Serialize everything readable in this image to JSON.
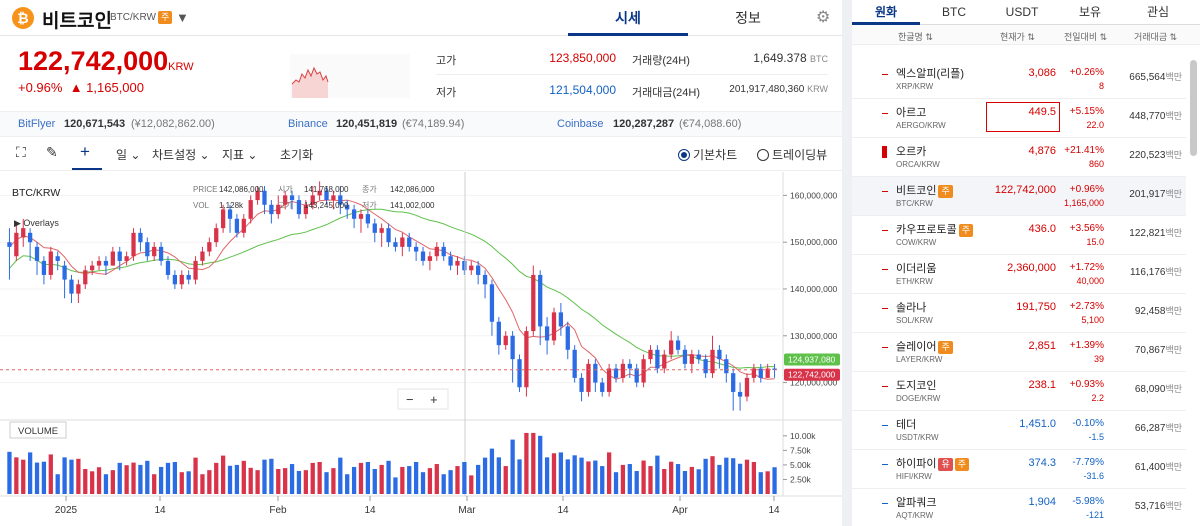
{
  "header": {
    "coin_icon": "₿",
    "coin_name": "비트코인",
    "pair": "BTC/KRW",
    "pair_badge": "주",
    "tab_market": "시세",
    "tab_info": "정보"
  },
  "ticker": {
    "price": "122,742,000",
    "unit": "KRW",
    "change_pct": "+0.96%",
    "change_abs": "▲ 1,165,000",
    "high_label": "고가",
    "high": "123,850,000",
    "low_label": "저가",
    "low": "121,504,000",
    "vol_label": "거래량(24H)",
    "vol": "1,649.378",
    "vol_unit": "BTC",
    "amt_label": "거래대금(24H)",
    "amt": "201,917,480,360",
    "amt_unit": "KRW"
  },
  "exchanges": [
    {
      "name": "BitFlyer",
      "price": "120,671,543",
      "diff": "(¥12,082,862.00)"
    },
    {
      "name": "Binance",
      "price": "120,451,819",
      "diff": "(€74,189.94)"
    },
    {
      "name": "Coinbase",
      "price": "120,287,287",
      "diff": "(€74,088.60)"
    }
  ],
  "toolbar": {
    "period": "일",
    "chart_settings": "차트설정",
    "indicator": "지표",
    "reset": "초기화",
    "basic_chart": "기본차트",
    "tradingview": "트레이딩뷰"
  },
  "chart": {
    "symbol": "BTC/KRW",
    "overlays": "▶ Overlays",
    "volume_label": "VOLUME",
    "info_price_label": "PRICE",
    "info_price": "142,086,000",
    "info_open_label": "시가",
    "info_open": "141,768,000",
    "info_close_label": "종가",
    "info_close": "142,086,000",
    "info_vol_label": "VOL",
    "info_vol": "1,128k",
    "info_high_label": "고가",
    "info_high": "143,245,000",
    "info_low_label": "저가",
    "info_low": "141,002,000",
    "zoom_out": "−",
    "zoom_in": "+",
    "last_ma": "124,937,080",
    "last_price": "122,742,000",
    "y_ticks": [
      "160,000,000",
      "150,000,000",
      "140,000,000",
      "130,000,000",
      "120,000,000"
    ],
    "vol_ticks": [
      "10.00k",
      "7.50k",
      "5.00k",
      "2.50k"
    ],
    "x_ticks": [
      "2025",
      "14",
      "Feb",
      "14",
      "Mar",
      "14",
      "Apr",
      "14"
    ],
    "colors": {
      "up": "#d9334a",
      "down": "#2b6be3",
      "ma_short": "#e06666",
      "ma_long": "#5ec14a"
    }
  },
  "chart_data": {
    "type": "candlestick",
    "symbol": "BTC/KRW",
    "y_unit": "KRW",
    "ohlc": [
      [
        150,
        149,
        153,
        142
      ],
      [
        147,
        152,
        154,
        146
      ],
      [
        151,
        153,
        155,
        149
      ],
      [
        152,
        150,
        153,
        146
      ],
      [
        149,
        146,
        150,
        143
      ],
      [
        146,
        143,
        147,
        141
      ],
      [
        143,
        148,
        149,
        142
      ],
      [
        147,
        146,
        148,
        144
      ],
      [
        145,
        142,
        146,
        138
      ],
      [
        142,
        139,
        143,
        137
      ],
      [
        139,
        141,
        142,
        137
      ],
      [
        141,
        144,
        145,
        140
      ],
      [
        144,
        145,
        146,
        143
      ],
      [
        145,
        146,
        147,
        144
      ],
      [
        146,
        145,
        147,
        143
      ],
      [
        145,
        148,
        149,
        145
      ],
      [
        148,
        146,
        149,
        144
      ],
      [
        146,
        147,
        148,
        145
      ],
      [
        147,
        152,
        153,
        146
      ],
      [
        152,
        150,
        153,
        148
      ],
      [
        150,
        147,
        151,
        146
      ],
      [
        147,
        149,
        150,
        146
      ],
      [
        149,
        146,
        150,
        145
      ],
      [
        146,
        143,
        147,
        142
      ],
      [
        143,
        141,
        144,
        140
      ],
      [
        141,
        143,
        144,
        140
      ],
      [
        143,
        142,
        144,
        141
      ],
      [
        142,
        146,
        147,
        141
      ],
      [
        146,
        148,
        149,
        145
      ],
      [
        148,
        150,
        151,
        147
      ],
      [
        150,
        153,
        154,
        149
      ],
      [
        153,
        157,
        158,
        152
      ],
      [
        157,
        155,
        158,
        152
      ],
      [
        155,
        152,
        156,
        151
      ],
      [
        152,
        155,
        156,
        151
      ],
      [
        155,
        159,
        160,
        154
      ],
      [
        159,
        161,
        162,
        158
      ],
      [
        161,
        158,
        162,
        156
      ],
      [
        158,
        156,
        159,
        154
      ],
      [
        156,
        158,
        160,
        155
      ],
      [
        158,
        160,
        161,
        157
      ],
      [
        160,
        159,
        161,
        157
      ],
      [
        159,
        156,
        160,
        155
      ],
      [
        156,
        158,
        159,
        155
      ],
      [
        158,
        160,
        162,
        157
      ],
      [
        160,
        161,
        163,
        159
      ],
      [
        161,
        159,
        162,
        158
      ],
      [
        159,
        160,
        161,
        157
      ],
      [
        160,
        158,
        162,
        156
      ],
      [
        158,
        157,
        159,
        155
      ],
      [
        157,
        155,
        158,
        153
      ],
      [
        155,
        156,
        157,
        152
      ],
      [
        156,
        154,
        157,
        153
      ],
      [
        154,
        152,
        155,
        150
      ],
      [
        152,
        153,
        154,
        149
      ],
      [
        153,
        150,
        154,
        149
      ],
      [
        150,
        149,
        151,
        148
      ],
      [
        149,
        151,
        152,
        147
      ],
      [
        151,
        149,
        152,
        148
      ],
      [
        149,
        148,
        150,
        146
      ],
      [
        148,
        146,
        149,
        145
      ],
      [
        146,
        147,
        148,
        144
      ],
      [
        147,
        149,
        150,
        146
      ],
      [
        149,
        147,
        150,
        146
      ],
      [
        147,
        145,
        148,
        144
      ],
      [
        145,
        146,
        147,
        143
      ],
      [
        146,
        144,
        147,
        143
      ],
      [
        144,
        145,
        146,
        143
      ],
      [
        145,
        143,
        146,
        141
      ],
      [
        143,
        141,
        144,
        138
      ],
      [
        141,
        133,
        142,
        130
      ],
      [
        133,
        128,
        134,
        126
      ],
      [
        128,
        130,
        131,
        127
      ],
      [
        130,
        125,
        131,
        120
      ],
      [
        125,
        119,
        126,
        118
      ],
      [
        119,
        131,
        132,
        117
      ],
      [
        131,
        143,
        145,
        130
      ],
      [
        143,
        132,
        144,
        128
      ],
      [
        132,
        129,
        134,
        126
      ],
      [
        129,
        135,
        136,
        128
      ],
      [
        135,
        132,
        137,
        130
      ],
      [
        132,
        127,
        133,
        125
      ],
      [
        127,
        121,
        128,
        120
      ],
      [
        121,
        118,
        122,
        116
      ],
      [
        118,
        124,
        125,
        117
      ],
      [
        124,
        120,
        125,
        118
      ],
      [
        120,
        118,
        121,
        117
      ],
      [
        118,
        123,
        124,
        117
      ],
      [
        123,
        121,
        124,
        120
      ],
      [
        121,
        124,
        125,
        120
      ],
      [
        124,
        123,
        125,
        121
      ],
      [
        123,
        120,
        124,
        119
      ],
      [
        120,
        125,
        126,
        119
      ],
      [
        125,
        127,
        128,
        124
      ],
      [
        127,
        123,
        128,
        122
      ],
      [
        123,
        126,
        127,
        122
      ],
      [
        126,
        129,
        131,
        125
      ],
      [
        129,
        127,
        130,
        126
      ],
      [
        127,
        124,
        128,
        123
      ],
      [
        124,
        126,
        127,
        122
      ],
      [
        126,
        125,
        127,
        124
      ],
      [
        125,
        122,
        126,
        121
      ],
      [
        122,
        127,
        130,
        121
      ],
      [
        127,
        125,
        128,
        123
      ],
      [
        125,
        122,
        126,
        120
      ],
      [
        122,
        118,
        123,
        114
      ],
      [
        118,
        117,
        120,
        114
      ],
      [
        117,
        121,
        122,
        116
      ],
      [
        121,
        123,
        124,
        120
      ],
      [
        123,
        121,
        124,
        120
      ],
      [
        121,
        123,
        124,
        121
      ],
      [
        123,
        122.7,
        124,
        121
      ]
    ],
    "ohlc_columns": [
      "open",
      "close",
      "high",
      "low"
    ],
    "ohlc_unit": "million KRW",
    "ylim": [
      112,
      165
    ],
    "x_ticks": [
      "2025",
      "14",
      "Feb",
      "14",
      "Mar",
      "14",
      "Apr",
      "14"
    ]
  },
  "market": {
    "tabs": [
      "원화",
      "BTC",
      "USDT",
      "보유",
      "관심"
    ],
    "cols": [
      "한글명 ⇅",
      "현재가 ⇅",
      "전일대비 ⇅",
      "거래대금 ⇅"
    ],
    "rows": [
      {
        "name": "엑스알피(리플)",
        "pair": "XRP/KRW",
        "price": "3,086",
        "pct": "+0.26%",
        "delta": "8",
        "vol": "665,564",
        "unit": "백만",
        "dir": "up",
        "badge": ""
      },
      {
        "name": "아르고",
        "pair": "AERGO/KRW",
        "price": "449.5",
        "pct": "+5.15%",
        "delta": "22.0",
        "vol": "448,770",
        "unit": "백만",
        "dir": "up",
        "badge": ""
      },
      {
        "name": "오르카",
        "pair": "ORCA/KRW",
        "price": "4,876",
        "pct": "+21.41%",
        "delta": "860",
        "vol": "220,523",
        "unit": "백만",
        "dir": "up",
        "badge": ""
      },
      {
        "name": "비트코인",
        "pair": "BTC/KRW",
        "price": "122,742,000",
        "pct": "+0.96%",
        "delta": "1,165,000",
        "vol": "201,917",
        "unit": "백만",
        "dir": "up",
        "badge": "주"
      },
      {
        "name": "카우프로토콜",
        "pair": "COW/KRW",
        "price": "436.0",
        "pct": "+3.56%",
        "delta": "15.0",
        "vol": "122,821",
        "unit": "백만",
        "dir": "up",
        "badge": "주"
      },
      {
        "name": "이더리움",
        "pair": "ETH/KRW",
        "price": "2,360,000",
        "pct": "+1.72%",
        "delta": "40,000",
        "vol": "116,176",
        "unit": "백만",
        "dir": "up",
        "badge": ""
      },
      {
        "name": "솔라나",
        "pair": "SOL/KRW",
        "price": "191,750",
        "pct": "+2.73%",
        "delta": "5,100",
        "vol": "92,458",
        "unit": "백만",
        "dir": "up",
        "badge": ""
      },
      {
        "name": "슬레이어",
        "pair": "LAYER/KRW",
        "price": "2,851",
        "pct": "+1.39%",
        "delta": "39",
        "vol": "70,867",
        "unit": "백만",
        "dir": "up",
        "badge": "주"
      },
      {
        "name": "도지코인",
        "pair": "DOGE/KRW",
        "price": "238.1",
        "pct": "+0.93%",
        "delta": "2.2",
        "vol": "68,090",
        "unit": "백만",
        "dir": "up",
        "badge": ""
      },
      {
        "name": "테더",
        "pair": "USDT/KRW",
        "price": "1,451.0",
        "pct": "-0.10%",
        "delta": "-1.5",
        "vol": "66,287",
        "unit": "백만",
        "dir": "dn",
        "badge": ""
      },
      {
        "name": "하이파이",
        "pair": "HIFI/KRW",
        "price": "374.3",
        "pct": "-7.79%",
        "delta": "-31.6",
        "vol": "61,400",
        "unit": "백만",
        "dir": "dn",
        "badge": "유주"
      },
      {
        "name": "알파쿼크",
        "pair": "AQT/KRW",
        "price": "1,904",
        "pct": "-5.98%",
        "delta": "-121",
        "vol": "53,716",
        "unit": "백만",
        "dir": "dn",
        "badge": ""
      }
    ]
  }
}
